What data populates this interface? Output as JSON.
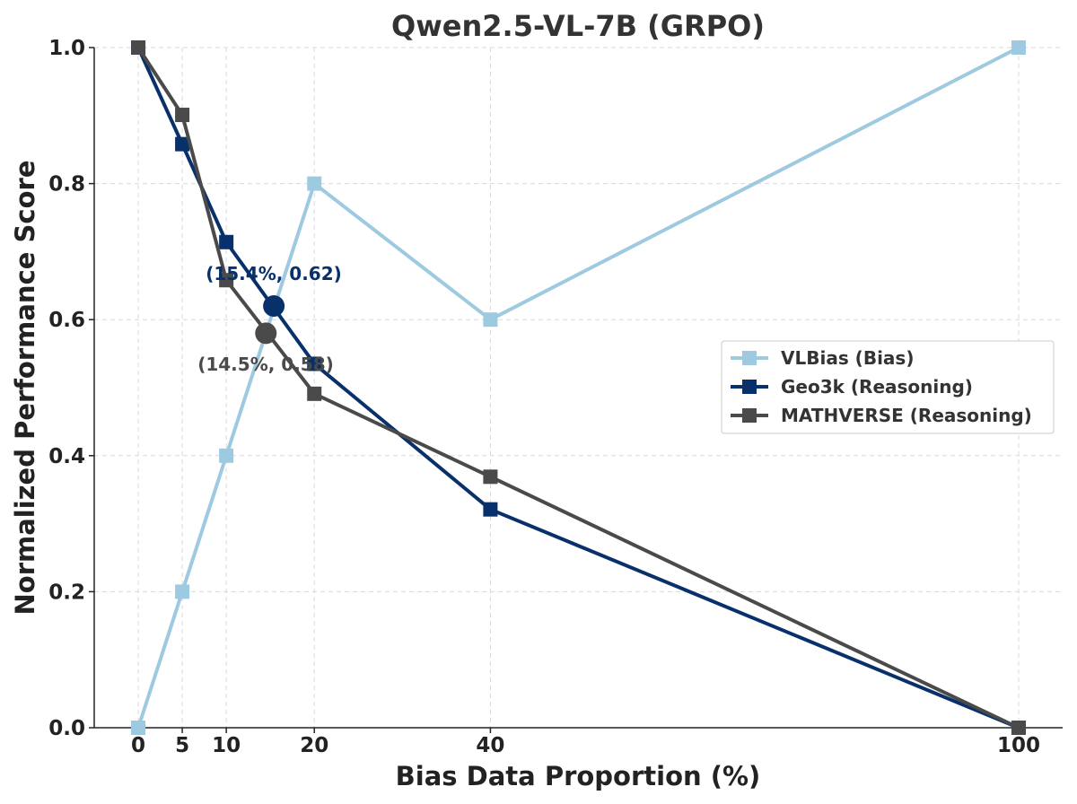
{
  "chart_data": {
    "type": "line",
    "title": "Qwen2.5-VL-7B (GRPO)",
    "xlabel": "Bias Data Proportion (%)",
    "ylabel": "Normalized Performance Score",
    "x": [
      0,
      5,
      10,
      20,
      40,
      100
    ],
    "x_ticks": [
      "0",
      "5",
      "10",
      "20",
      "40",
      "100"
    ],
    "y_ticks": [
      "0.0",
      "0.2",
      "0.4",
      "0.6",
      "0.8",
      "1.0"
    ],
    "xlim": [
      -5,
      105
    ],
    "ylim": [
      0,
      1
    ],
    "grid": true,
    "legend_position": "center-right",
    "series": [
      {
        "name": "VLBias (Bias)",
        "color": "#9ecae1",
        "marker": "square",
        "values": [
          0.0,
          0.2,
          0.4,
          0.8,
          0.6,
          1.0
        ]
      },
      {
        "name": "Geo3k (Reasoning)",
        "color": "#08306b",
        "marker": "square",
        "values": [
          1.0,
          0.858,
          0.714,
          0.535,
          0.321,
          0.0
        ]
      },
      {
        "name": "MATHVERSE (Reasoning)",
        "color": "#4a4a4a",
        "marker": "square",
        "values": [
          1.0,
          0.901,
          0.658,
          0.491,
          0.369,
          0.0
        ]
      }
    ],
    "annotations": [
      {
        "label": "(15.4%, 0.62)",
        "x": 15.4,
        "y": 0.62,
        "color": "#08306b"
      },
      {
        "label": "(14.5%, 0.58)",
        "x": 14.5,
        "y": 0.58,
        "color": "#4a4a4a"
      }
    ]
  }
}
